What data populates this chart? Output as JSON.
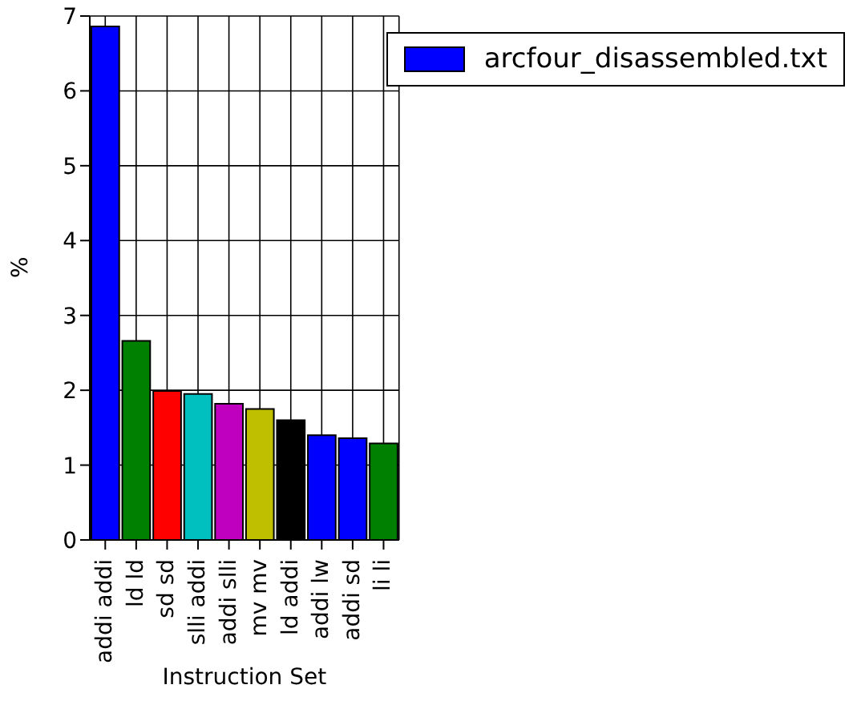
{
  "chart_data": {
    "type": "bar",
    "xlabel": "Instruction Set",
    "ylabel": "%",
    "categories": [
      "addi addi",
      "ld ld",
      "sd sd",
      "slli addi",
      "addi slli",
      "mv mv",
      "ld addi",
      "addi lw",
      "addi sd",
      "li li"
    ],
    "series": [
      {
        "name": "arcfour_disassembled.txt",
        "color": "#0000ff",
        "colors": [
          "#0000ff",
          "#008000",
          "#ff0000",
          "#00bfbf",
          "#bf00bf",
          "#bfbf00",
          "#000000",
          "#0000ff",
          "#0000ff",
          "#008000"
        ],
        "values": [
          6.86,
          2.66,
          1.99,
          1.95,
          1.82,
          1.75,
          1.6,
          1.4,
          1.36,
          1.29
        ]
      }
    ],
    "ylim": [
      0,
      7
    ],
    "yticks": [
      0,
      1,
      2,
      3,
      4,
      5,
      6,
      7
    ],
    "grid": true,
    "legend": "top right"
  }
}
